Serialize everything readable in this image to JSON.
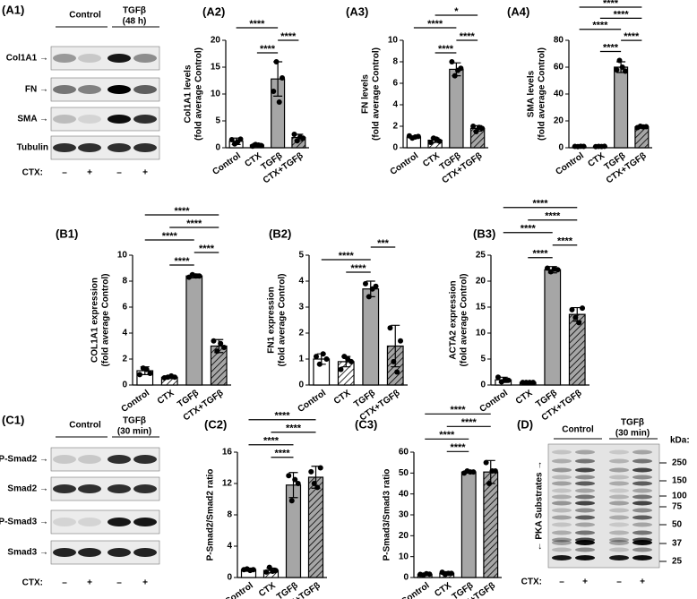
{
  "blot_A1": {
    "panel": "(A1)",
    "headers": [
      "Control",
      "TGFβ",
      "(48 h)"
    ],
    "rows": [
      "Col1A1 →",
      "FN →",
      "SMA →",
      "Tubulin"
    ],
    "treatment_label": "CTX:",
    "treatment": [
      "–",
      "+",
      "–",
      "+"
    ]
  },
  "blot_C1": {
    "panel": "(C1)",
    "headers": [
      "Control",
      "TGFβ",
      "(30 min)"
    ],
    "rows": [
      "P-Smad2 →",
      "Smad2 →",
      "P-Smad3 →",
      "Smad3 →"
    ],
    "treatment_label": "CTX:",
    "treatment": [
      "–",
      "+",
      "–",
      "+"
    ]
  },
  "blot_D": {
    "panel": "(D)",
    "headers": [
      "Control",
      "TGFβ",
      "(30 min)"
    ],
    "axis_label": "← PKA Substrates →",
    "marker_title": "kDa:",
    "markers": [
      250,
      150,
      100,
      75,
      50,
      37,
      25
    ],
    "treatment_label": "CTX:",
    "treatment": [
      "–",
      "+",
      "–",
      "+"
    ]
  },
  "chart_data": [
    {
      "type": "bar",
      "panel": "(A2)",
      "ylabel": [
        "Col1A1 levels",
        "(fold average Control)"
      ],
      "categories": [
        "Control",
        "CTX",
        "TGFβ",
        "CTX+TGFβ"
      ],
      "values": [
        1.2,
        0.5,
        12.8,
        1.9
      ],
      "errors": [
        0.6,
        0.3,
        3.2,
        0.6
      ],
      "points": [
        [
          1.5,
          0.7,
          1.1,
          1.6
        ],
        [
          0.3,
          0.6,
          0.5,
          0.4
        ],
        [
          10.5,
          16,
          8.5,
          13
        ],
        [
          2.5,
          1.3,
          2,
          1.8
        ]
      ],
      "ylim": [
        0,
        20
      ],
      "yticks": [
        0,
        5,
        10,
        15,
        20
      ],
      "bar_colors": [
        "#ffffff",
        "#ffffff",
        "#a6a6a6",
        "#a6a6a6"
      ],
      "hatch": [
        false,
        true,
        false,
        true
      ],
      "comparisons": [
        {
          "groups": [
            1,
            2
          ],
          "label": "****"
        },
        {
          "groups": [
            2,
            3
          ],
          "label": "****"
        },
        {
          "groups": [
            0,
            2
          ],
          "label": "****"
        }
      ]
    },
    {
      "type": "bar",
      "panel": "(A3)",
      "ylabel": [
        "FN levels",
        "(fold average Control)"
      ],
      "categories": [
        "Control",
        "CTX",
        "TGFβ",
        "CTX+TGFβ"
      ],
      "values": [
        1.0,
        0.7,
        7.3,
        1.8
      ],
      "errors": [
        0.1,
        0.2,
        0.6,
        0.25
      ],
      "points": [
        [
          1.1,
          0.9,
          1.0,
          1.05
        ],
        [
          0.5,
          0.9,
          0.8,
          0.6
        ],
        [
          8,
          6.7,
          7.2,
          7.4
        ],
        [
          2.0,
          1.5,
          1.9,
          1.8
        ]
      ],
      "ylim": [
        0,
        10
      ],
      "yticks": [
        0,
        2,
        4,
        6,
        8,
        10
      ],
      "bar_colors": [
        "#ffffff",
        "#ffffff",
        "#a6a6a6",
        "#a6a6a6"
      ],
      "hatch": [
        false,
        true,
        false,
        true
      ],
      "comparisons": [
        {
          "groups": [
            1,
            2
          ],
          "label": "****"
        },
        {
          "groups": [
            2,
            3
          ],
          "label": "****"
        },
        {
          "groups": [
            0,
            2
          ],
          "label": "****"
        },
        {
          "groups": [
            1,
            3
          ],
          "label": "*"
        }
      ]
    },
    {
      "type": "bar",
      "panel": "(A4)",
      "ylabel": [
        "SMA levels",
        "(fold average Control)"
      ],
      "categories": [
        "Control",
        "CTX",
        "TGFβ",
        "CTX+TGFβ"
      ],
      "values": [
        1,
        1,
        60,
        15.5
      ],
      "errors": [
        0.2,
        0.2,
        4,
        0.7
      ],
      "points": [
        [
          1,
          0.8,
          1.1,
          1
        ],
        [
          0.8,
          1,
          0.9,
          1.1
        ],
        [
          58,
          65,
          60,
          57
        ],
        [
          15,
          16,
          15.5,
          15.7
        ]
      ],
      "ylim": [
        0,
        80
      ],
      "yticks": [
        0,
        20,
        40,
        60,
        80
      ],
      "bar_colors": [
        "#ffffff",
        "#ffffff",
        "#a6a6a6",
        "#a6a6a6"
      ],
      "hatch": [
        false,
        true,
        false,
        true
      ],
      "comparisons": [
        {
          "groups": [
            1,
            2
          ],
          "label": "****"
        },
        {
          "groups": [
            2,
            3
          ],
          "label": "****"
        },
        {
          "groups": [
            0,
            2
          ],
          "label": "****"
        },
        {
          "groups": [
            1,
            3
          ],
          "label": "****"
        },
        {
          "groups": [
            0,
            3
          ],
          "label": "****"
        }
      ]
    },
    {
      "type": "bar",
      "panel": "(B1)",
      "ylabel": [
        "COL1A1 expression",
        "(fold average Control)"
      ],
      "categories": [
        "Control",
        "CTX",
        "TGFβ",
        "CTX+TGFβ"
      ],
      "values": [
        1.1,
        0.6,
        8.4,
        3.0
      ],
      "errors": [
        0.3,
        0.1,
        0.15,
        0.5
      ],
      "points": [
        [
          0.8,
          1.3,
          1.2,
          0.9
        ],
        [
          0.55,
          0.6,
          0.7,
          0.6
        ],
        [
          8.3,
          8.5,
          8.4,
          8.4
        ],
        [
          3.4,
          2.6,
          3.2,
          2.9
        ]
      ],
      "ylim": [
        0,
        10
      ],
      "yticks": [
        0,
        2,
        4,
        6,
        8,
        10
      ],
      "bar_colors": [
        "#ffffff",
        "#ffffff",
        "#a6a6a6",
        "#a6a6a6"
      ],
      "hatch": [
        false,
        true,
        false,
        true
      ],
      "comparisons": [
        {
          "groups": [
            1,
            2
          ],
          "label": "****"
        },
        {
          "groups": [
            2,
            3
          ],
          "label": "****"
        },
        {
          "groups": [
            0,
            2
          ],
          "label": "****"
        },
        {
          "groups": [
            1,
            3
          ],
          "label": "****"
        },
        {
          "groups": [
            0,
            3
          ],
          "label": "****"
        }
      ]
    },
    {
      "type": "bar",
      "panel": "(B2)",
      "ylabel": [
        "FN1 expression",
        "(fold average Control)"
      ],
      "categories": [
        "Control",
        "CTX",
        "TGFβ",
        "CTX+TGFβ"
      ],
      "values": [
        1.0,
        0.9,
        3.7,
        1.5
      ],
      "errors": [
        0.2,
        0.2,
        0.3,
        0.8
      ],
      "points": [
        [
          1.1,
          0.8,
          1.2,
          1.0
        ],
        [
          0.6,
          1.1,
          1.0,
          0.9
        ],
        [
          3.9,
          3.4,
          3.7,
          3.8
        ],
        [
          2.2,
          0.9,
          0.5,
          1.7
        ]
      ],
      "ylim": [
        0,
        5
      ],
      "yticks": [
        0,
        1,
        2,
        3,
        4,
        5
      ],
      "bar_colors": [
        "#ffffff",
        "#ffffff",
        "#a6a6a6",
        "#a6a6a6"
      ],
      "hatch": [
        false,
        true,
        false,
        true
      ],
      "comparisons": [
        {
          "groups": [
            1,
            2
          ],
          "label": "****"
        },
        {
          "groups": [
            0,
            2
          ],
          "label": "****"
        },
        {
          "groups": [
            2,
            3
          ],
          "label": "***"
        }
      ]
    },
    {
      "type": "bar",
      "panel": "(B3)",
      "ylabel": [
        "ACTA2 expression",
        "(fold average Control)"
      ],
      "categories": [
        "Control",
        "CTX",
        "TGFβ",
        "CTX+TGFβ"
      ],
      "values": [
        1.0,
        0.5,
        22.2,
        13.6
      ],
      "errors": [
        0.5,
        0.1,
        0.6,
        1.3
      ],
      "points": [
        [
          1.5,
          0.6,
          1.0,
          0.9
        ],
        [
          0.5,
          0.5,
          0.5,
          0.5
        ],
        [
          22.5,
          21.8,
          22.3,
          22.2
        ],
        [
          14.5,
          13,
          12,
          14.8
        ]
      ],
      "ylim": [
        0,
        25
      ],
      "yticks": [
        0,
        5,
        10,
        15,
        20,
        25
      ],
      "bar_colors": [
        "#ffffff",
        "#ffffff",
        "#a6a6a6",
        "#a6a6a6"
      ],
      "hatch": [
        false,
        true,
        false,
        true
      ],
      "comparisons": [
        {
          "groups": [
            1,
            2
          ],
          "label": "****"
        },
        {
          "groups": [
            2,
            3
          ],
          "label": "****"
        },
        {
          "groups": [
            0,
            2
          ],
          "label": "****"
        },
        {
          "groups": [
            1,
            3
          ],
          "label": "****"
        },
        {
          "groups": [
            0,
            3
          ],
          "label": "****"
        }
      ]
    },
    {
      "type": "bar",
      "panel": "(C2)",
      "ylabel": [
        "P-Smad2/Smad2 ratio"
      ],
      "categories": [
        "Control",
        "CTX",
        "TGFβ",
        "CTX+TGFβ"
      ],
      "values": [
        1.0,
        0.9,
        11.8,
        12.8
      ],
      "errors": [
        0.2,
        0.3,
        1.6,
        1.4
      ],
      "points": [
        [
          1,
          1.1,
          0.9,
          1
        ],
        [
          0.7,
          1.3,
          0.8,
          0.9
        ],
        [
          13,
          9.8,
          12.5,
          12
        ],
        [
          13.5,
          12,
          11.5,
          14
        ]
      ],
      "ylim": [
        0,
        16
      ],
      "yticks": [
        0,
        4,
        8,
        12,
        16
      ],
      "bar_colors": [
        "#ffffff",
        "#ffffff",
        "#a6a6a6",
        "#a6a6a6"
      ],
      "hatch": [
        false,
        true,
        false,
        true
      ],
      "comparisons": [
        {
          "groups": [
            1,
            2
          ],
          "label": "****"
        },
        {
          "groups": [
            0,
            2
          ],
          "label": "****"
        },
        {
          "groups": [
            1,
            3
          ],
          "label": "****"
        },
        {
          "groups": [
            0,
            3
          ],
          "label": "****"
        }
      ]
    },
    {
      "type": "bar",
      "panel": "(C3)",
      "ylabel": [
        "P-Smad3/Smad3 ratio"
      ],
      "categories": [
        "Control",
        "CTX",
        "TGFβ",
        "CTX+TGFβ"
      ],
      "values": [
        1.5,
        2.0,
        50.5,
        50.5
      ],
      "errors": [
        0.3,
        0.8,
        0.5,
        5.5
      ],
      "points": [
        [
          1.5,
          1.2,
          1.8,
          1.6
        ],
        [
          2.5,
          1.5,
          2,
          2
        ],
        [
          50,
          51,
          50.5,
          50.5
        ],
        [
          55,
          45,
          51,
          51
        ]
      ],
      "ylim": [
        0,
        60
      ],
      "yticks": [
        0,
        10,
        20,
        30,
        40,
        50,
        60
      ],
      "bar_colors": [
        "#ffffff",
        "#ffffff",
        "#a6a6a6",
        "#a6a6a6"
      ],
      "hatch": [
        false,
        true,
        false,
        true
      ],
      "comparisons": [
        {
          "groups": [
            1,
            2
          ],
          "label": "****"
        },
        {
          "groups": [
            0,
            2
          ],
          "label": "****"
        },
        {
          "groups": [
            1,
            3
          ],
          "label": "****"
        },
        {
          "groups": [
            0,
            3
          ],
          "label": "****"
        }
      ]
    }
  ]
}
